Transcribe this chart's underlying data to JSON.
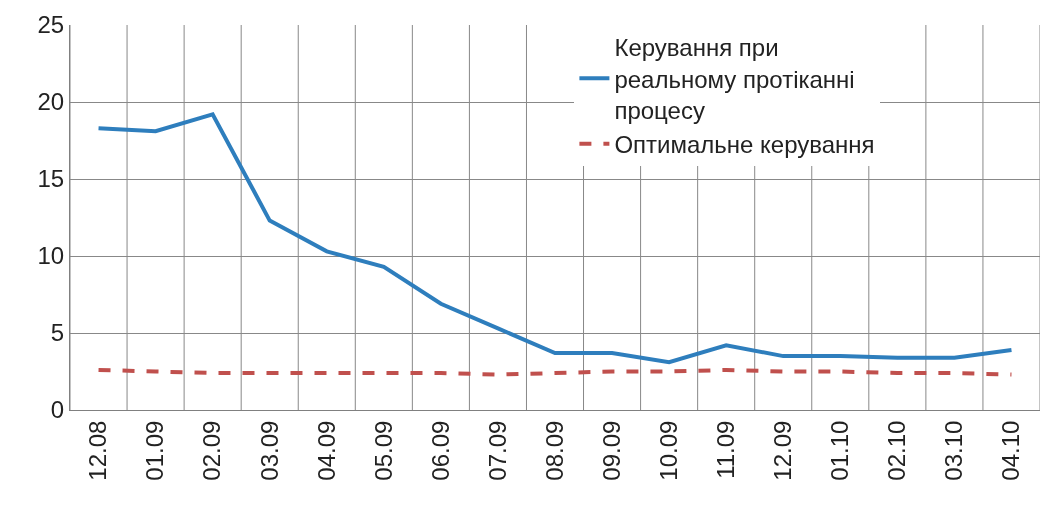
{
  "chart_data": {
    "type": "line",
    "categories": [
      "12.08",
      "01.09",
      "02.09",
      "03.09",
      "04.09",
      "05.09",
      "06.09",
      "07.09",
      "08.09",
      "09.09",
      "10.09",
      "11.09",
      "12.09",
      "01.10",
      "02.10",
      "03.10",
      "04.10"
    ],
    "series": [
      {
        "name": "Керування при реальному протіканні процесу",
        "color": "#2e7ebd",
        "line_style": "solid",
        "values": [
          18.3,
          18.1,
          19.2,
          12.3,
          10.3,
          9.3,
          6.9,
          5.3,
          3.7,
          3.7,
          3.1,
          4.2,
          3.5,
          3.5,
          3.4,
          3.4,
          3.9
        ]
      },
      {
        "name": "Оптимальне керування",
        "color": "#c0504d",
        "line_style": "dashed",
        "values": [
          2.6,
          2.5,
          2.4,
          2.4,
          2.4,
          2.4,
          2.4,
          2.3,
          2.4,
          2.5,
          2.5,
          2.6,
          2.5,
          2.5,
          2.4,
          2.4,
          2.3
        ]
      }
    ],
    "ylim": [
      0,
      25
    ],
    "yticks": [
      0,
      5,
      10,
      15,
      20,
      25
    ],
    "grid": true,
    "legend": "top right",
    "marker": "none"
  }
}
